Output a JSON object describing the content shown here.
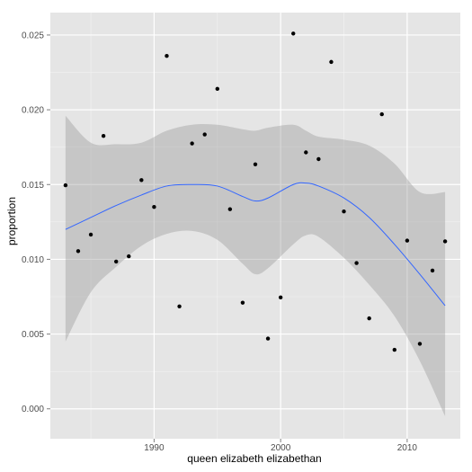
{
  "chart_data": {
    "type": "scatter",
    "title": "",
    "xlabel": "queen elizabeth elizabethan",
    "ylabel": "proportion",
    "xlim": [
      1981.8,
      2014.2
    ],
    "ylim": [
      -0.002,
      0.0265
    ],
    "x_ticks": [
      1990,
      2000,
      2010
    ],
    "x_tick_labels": [
      "1990",
      "2000",
      "2010"
    ],
    "y_ticks": [
      0.0,
      0.005,
      0.01,
      0.015,
      0.02,
      0.025
    ],
    "y_tick_labels": [
      "0.000",
      "0.005",
      "0.010",
      "0.015",
      "0.020",
      "0.025"
    ],
    "grid": true,
    "legend": "none",
    "colors": {
      "panel_background": "#e5e5e5",
      "grid_major": "#ffffff",
      "grid_minor": "#f2f2f2",
      "points": "#000000",
      "smooth_line": "#3366ff",
      "confidence_band": "#999999"
    },
    "points": [
      {
        "x": 1983,
        "y": 0.01495
      },
      {
        "x": 1984,
        "y": 0.01055
      },
      {
        "x": 1985,
        "y": 0.01165
      },
      {
        "x": 1986,
        "y": 0.01825
      },
      {
        "x": 1987,
        "y": 0.00985
      },
      {
        "x": 1988,
        "y": 0.0102
      },
      {
        "x": 1989,
        "y": 0.0153
      },
      {
        "x": 1990,
        "y": 0.0135
      },
      {
        "x": 1991,
        "y": 0.0236
      },
      {
        "x": 1992,
        "y": 0.00685
      },
      {
        "x": 1993,
        "y": 0.01775
      },
      {
        "x": 1994,
        "y": 0.01835
      },
      {
        "x": 1995,
        "y": 0.0214
      },
      {
        "x": 1996,
        "y": 0.01335
      },
      {
        "x": 1997,
        "y": 0.0071
      },
      {
        "x": 1998,
        "y": 0.01635
      },
      {
        "x": 1999,
        "y": 0.0047
      },
      {
        "x": 2000,
        "y": 0.00745
      },
      {
        "x": 2001,
        "y": 0.0251
      },
      {
        "x": 2002,
        "y": 0.01715
      },
      {
        "x": 2003,
        "y": 0.0167
      },
      {
        "x": 2004,
        "y": 0.0232
      },
      {
        "x": 2005,
        "y": 0.0132
      },
      {
        "x": 2006,
        "y": 0.00975
      },
      {
        "x": 2007,
        "y": 0.00605
      },
      {
        "x": 2008,
        "y": 0.0197
      },
      {
        "x": 2009,
        "y": 0.00395
      },
      {
        "x": 2010,
        "y": 0.01125
      },
      {
        "x": 2011,
        "y": 0.00435
      },
      {
        "x": 2012,
        "y": 0.00925
      },
      {
        "x": 2013,
        "y": 0.0112
      }
    ],
    "smooth": {
      "x": [
        1983,
        1985,
        1987,
        1989,
        1991,
        1993,
        1995,
        1997,
        1998,
        1999,
        2001,
        2002,
        2003,
        2005,
        2007,
        2009,
        2011,
        2013
      ],
      "y": [
        0.012,
        0.0128,
        0.0136,
        0.0143,
        0.0149,
        0.015,
        0.0149,
        0.0142,
        0.0139,
        0.0141,
        0.015,
        0.0151,
        0.0149,
        0.0141,
        0.0128,
        0.011,
        0.009,
        0.0069
      ],
      "lower": [
        0.0045,
        0.0078,
        0.0095,
        0.0109,
        0.0117,
        0.0119,
        0.0113,
        0.0097,
        0.009,
        0.0094,
        0.011,
        0.0116,
        0.0115,
        0.0101,
        0.0083,
        0.0062,
        0.0032,
        -0.0005
      ],
      "upper": [
        0.0196,
        0.0178,
        0.0177,
        0.0178,
        0.0186,
        0.019,
        0.019,
        0.0187,
        0.0186,
        0.0188,
        0.019,
        0.0186,
        0.0182,
        0.018,
        0.0176,
        0.0164,
        0.0145,
        0.0145
      ]
    }
  }
}
